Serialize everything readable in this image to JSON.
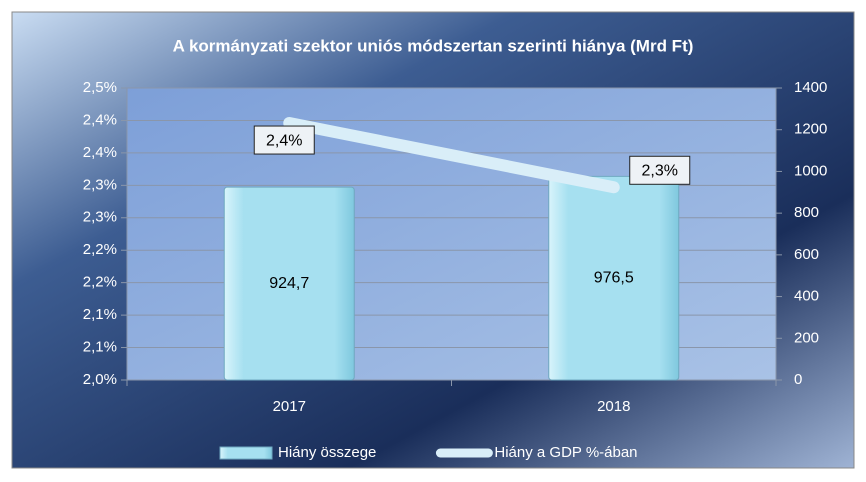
{
  "chart_data": {
    "type": "combo",
    "title": "A kormányzati szektor uniós módszertan szerinti hiánya (Mrd Ft)",
    "categories": [
      "2017",
      "2018"
    ],
    "series": [
      {
        "name": "Hiány összege",
        "type": "bar",
        "axis": "y2",
        "color": "#a6e0f0",
        "values": [
          924.7,
          976.5
        ],
        "value_labels": [
          "924,7",
          "976,5"
        ]
      },
      {
        "name": "Hiány a GDP %-ában",
        "type": "line",
        "axis": "y",
        "color": "#d9eef8",
        "values": [
          2.44,
          2.33
        ],
        "value_labels": [
          "2,4%",
          "2,3%"
        ]
      }
    ],
    "ylim": [
      2.0,
      2.5
    ],
    "yticks": [
      {
        "value": 2.0,
        "label": "2,0%"
      },
      {
        "value": 2.0556,
        "label": "2,1%"
      },
      {
        "value": 2.1111,
        "label": "2,1%"
      },
      {
        "value": 2.1667,
        "label": "2,2%"
      },
      {
        "value": 2.2222,
        "label": "2,2%"
      },
      {
        "value": 2.2778,
        "label": "2,3%"
      },
      {
        "value": 2.3333,
        "label": "2,3%"
      },
      {
        "value": 2.3889,
        "label": "2,4%"
      },
      {
        "value": 2.4444,
        "label": "2,4%"
      },
      {
        "value": 2.5,
        "label": "2,5%"
      }
    ],
    "y2lim": [
      0,
      1400
    ],
    "y2ticks": [
      0,
      200,
      400,
      600,
      800,
      1000,
      1200,
      1400
    ],
    "grid": true
  }
}
